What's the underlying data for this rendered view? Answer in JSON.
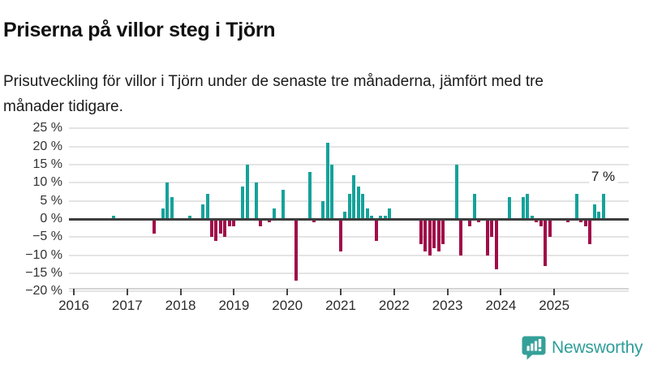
{
  "header": {
    "title": "Priserna på villor steg i Tjörn",
    "subtitle": "Prisutveckling för villor i Tjörn under de senaste tre månaderna, jämfört med tre månader tidigare."
  },
  "chart_data": {
    "type": "bar",
    "unit": "%",
    "grid": true,
    "ylim": [
      -20,
      25
    ],
    "y_ticks": [
      {
        "value": 25,
        "label": "25 %"
      },
      {
        "value": 20,
        "label": "20 %"
      },
      {
        "value": 15,
        "label": "15 %"
      },
      {
        "value": 10,
        "label": "10 %"
      },
      {
        "value": 5,
        "label": "5 %"
      },
      {
        "value": 0,
        "label": "0 %"
      },
      {
        "value": -5,
        "label": "−5 %"
      },
      {
        "value": -10,
        "label": "−10 %"
      },
      {
        "value": -15,
        "label": "−15 %"
      },
      {
        "value": -20,
        "label": "−20 %"
      }
    ],
    "x_ticks": [
      {
        "year": 2016,
        "label": "2016"
      },
      {
        "year": 2017,
        "label": "2017"
      },
      {
        "year": 2018,
        "label": "2018"
      },
      {
        "year": 2019,
        "label": "2019"
      },
      {
        "year": 2020,
        "label": "2020"
      },
      {
        "year": 2021,
        "label": "2021"
      },
      {
        "year": 2022,
        "label": "2022"
      },
      {
        "year": 2023,
        "label": "2023"
      },
      {
        "year": 2024,
        "label": "2024"
      },
      {
        "year": 2025,
        "label": "2025"
      }
    ],
    "annotation": {
      "text": "7 %",
      "date": "2025-12"
    },
    "colors": {
      "positive": "#15a29a",
      "negative": "#a00d49",
      "zero_line": "#3d3d3d",
      "logo": "#2f9e97"
    },
    "series": [
      {
        "points": [
          {
            "date": "2016-10",
            "value": 1
          },
          {
            "date": "2017-07",
            "value": -4
          },
          {
            "date": "2017-09",
            "value": 3
          },
          {
            "date": "2017-10",
            "value": 10
          },
          {
            "date": "2017-11",
            "value": 6
          },
          {
            "date": "2018-03",
            "value": 1
          },
          {
            "date": "2018-06",
            "value": 4
          },
          {
            "date": "2018-07",
            "value": 7
          },
          {
            "date": "2018-08",
            "value": -5
          },
          {
            "date": "2018-09",
            "value": -6
          },
          {
            "date": "2018-10",
            "value": -4
          },
          {
            "date": "2018-11",
            "value": -5
          },
          {
            "date": "2018-12",
            "value": -2
          },
          {
            "date": "2019-01",
            "value": -2
          },
          {
            "date": "2019-03",
            "value": 9
          },
          {
            "date": "2019-04",
            "value": 15
          },
          {
            "date": "2019-06",
            "value": 10
          },
          {
            "date": "2019-07",
            "value": -2
          },
          {
            "date": "2019-09",
            "value": -1
          },
          {
            "date": "2019-10",
            "value": 3
          },
          {
            "date": "2019-12",
            "value": 8
          },
          {
            "date": "2020-03",
            "value": -17
          },
          {
            "date": "2020-06",
            "value": 13
          },
          {
            "date": "2020-07",
            "value": -1
          },
          {
            "date": "2020-09",
            "value": 5
          },
          {
            "date": "2020-10",
            "value": 21
          },
          {
            "date": "2020-11",
            "value": 15
          },
          {
            "date": "2021-01",
            "value": -9
          },
          {
            "date": "2021-02",
            "value": 2
          },
          {
            "date": "2021-03",
            "value": 7
          },
          {
            "date": "2021-04",
            "value": 12
          },
          {
            "date": "2021-05",
            "value": 9
          },
          {
            "date": "2021-06",
            "value": 7
          },
          {
            "date": "2021-07",
            "value": 3
          },
          {
            "date": "2021-08",
            "value": 1
          },
          {
            "date": "2021-09",
            "value": -6
          },
          {
            "date": "2021-10",
            "value": 1
          },
          {
            "date": "2021-11",
            "value": 1
          },
          {
            "date": "2021-12",
            "value": 3
          },
          {
            "date": "2022-07",
            "value": -7
          },
          {
            "date": "2022-08",
            "value": -9
          },
          {
            "date": "2022-09",
            "value": -10
          },
          {
            "date": "2022-10",
            "value": -8
          },
          {
            "date": "2022-11",
            "value": -9
          },
          {
            "date": "2022-12",
            "value": -7
          },
          {
            "date": "2023-03",
            "value": 15
          },
          {
            "date": "2023-04",
            "value": -10
          },
          {
            "date": "2023-06",
            "value": -2
          },
          {
            "date": "2023-07",
            "value": 7
          },
          {
            "date": "2023-08",
            "value": -1
          },
          {
            "date": "2023-10",
            "value": -10
          },
          {
            "date": "2023-11",
            "value": -5
          },
          {
            "date": "2023-12",
            "value": -14
          },
          {
            "date": "2024-03",
            "value": 6
          },
          {
            "date": "2024-06",
            "value": 6
          },
          {
            "date": "2024-07",
            "value": 7
          },
          {
            "date": "2024-08",
            "value": 1
          },
          {
            "date": "2024-09",
            "value": -1
          },
          {
            "date": "2024-10",
            "value": -2
          },
          {
            "date": "2024-11",
            "value": -13
          },
          {
            "date": "2024-12",
            "value": -5
          },
          {
            "date": "2025-04",
            "value": -1
          },
          {
            "date": "2025-06",
            "value": 7
          },
          {
            "date": "2025-07",
            "value": -1
          },
          {
            "date": "2025-08",
            "value": -2
          },
          {
            "date": "2025-09",
            "value": -7
          },
          {
            "date": "2025-10",
            "value": 4
          },
          {
            "date": "2025-11",
            "value": 2
          },
          {
            "date": "2025-12",
            "value": 7
          }
        ]
      }
    ]
  },
  "footer": {
    "brand": "Newsworthy"
  }
}
